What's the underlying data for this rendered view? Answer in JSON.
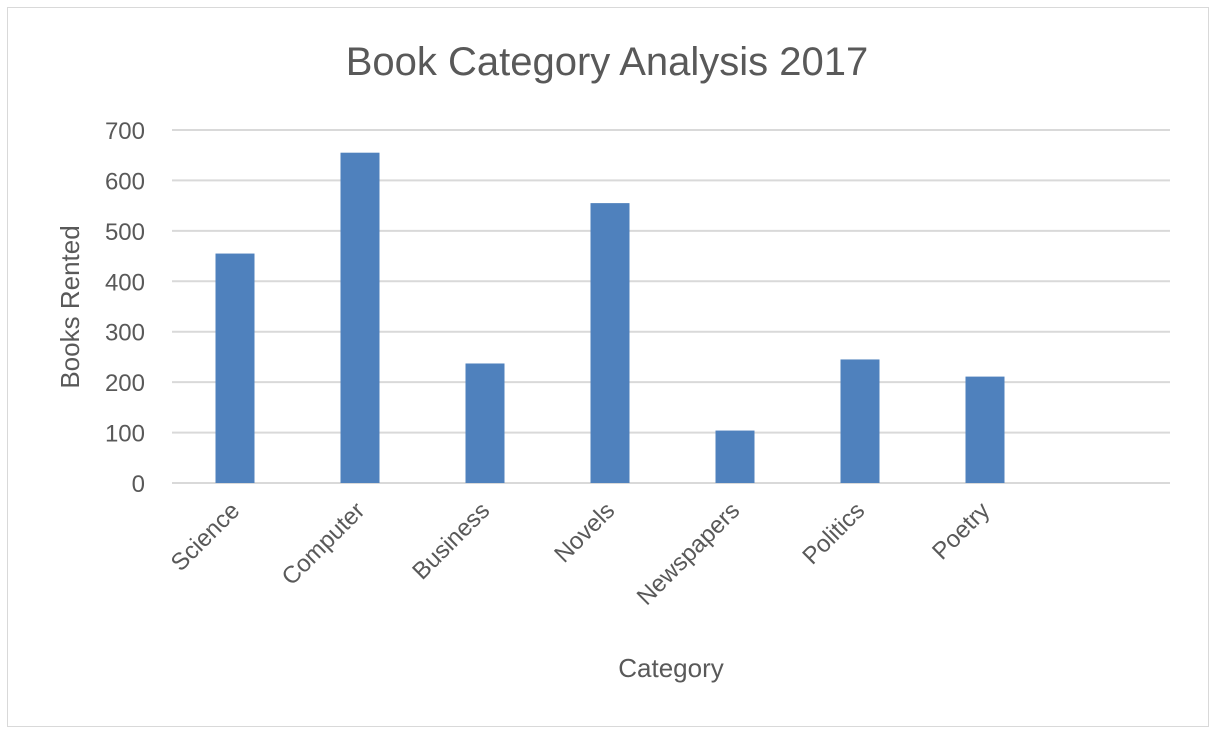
{
  "chart_data": {
    "type": "bar",
    "title": "Book Category Analysis 2017",
    "xlabel": "Category",
    "ylabel": "Books Rented",
    "categories": [
      "Science",
      "Computer",
      "Business",
      "Novels",
      "Newspapers",
      "Politics",
      "Poetry"
    ],
    "values": [
      455,
      655,
      237,
      555,
      104,
      245,
      211
    ],
    "ylim": [
      0,
      700
    ],
    "yticks": [
      "700",
      "600",
      "500",
      "400",
      "300",
      "200",
      "100",
      "0"
    ],
    "grid": true,
    "legend": "none",
    "colors": {
      "bar": "#4f81bd",
      "grid": "#d9d9d9",
      "text": "#595959"
    }
  }
}
